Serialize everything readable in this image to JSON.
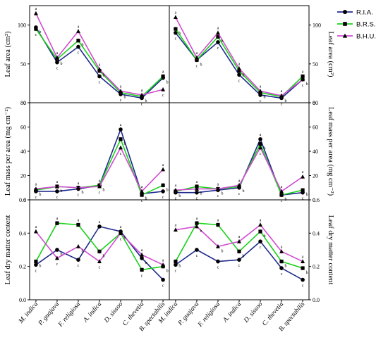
{
  "chart_data": {
    "type": "line",
    "categories": [
      "M. indica",
      "P. guajava",
      "F. religiosa",
      "A. indica",
      "D. sissoo",
      "C. thevetia",
      "B. spectabilis"
    ],
    "legend": [
      {
        "name": "R.I.A.",
        "color": "#1f2a8c",
        "marker": "circle"
      },
      {
        "name": "B.R.S.",
        "color": "#19d219",
        "marker": "square"
      },
      {
        "name": "B.H.U.",
        "color": "#d24bd2",
        "marker": "triangle"
      }
    ],
    "panels": [
      {
        "ylabel": "Leaf area (cm²)",
        "ylabel_side": "left",
        "ylim": [
          0,
          125
        ],
        "yticks": [
          "0",
          "50",
          "100"
        ],
        "tick_values": [
          0,
          50,
          100
        ],
        "series": [
          {
            "name": "R.I.A.",
            "values": [
              97,
              52,
              72,
              34,
              11,
              6,
              32
            ]
          },
          {
            "name": "B.R.S.",
            "values": [
              95,
              56,
              80,
              41,
              13,
              8,
              34
            ]
          },
          {
            "name": "B.H.U.",
            "values": [
              115,
              58,
              92,
              43,
              15,
              10,
              17
            ]
          }
        ]
      },
      {
        "ylabel": "Leaf area (cm²)",
        "ylabel_side": "right",
        "ylim": [
          0,
          125
        ],
        "yticks": [
          "0",
          "50",
          "100"
        ],
        "tick_values": [
          0,
          50,
          100
        ],
        "series": [
          {
            "name": "R.I.A.",
            "values": [
              90,
              55,
              78,
              36,
              10,
              6,
              30
            ]
          },
          {
            "name": "B.R.S.",
            "values": [
              95,
              55,
              85,
              41,
              13,
              8,
              34
            ]
          },
          {
            "name": "B.H.U.",
            "values": [
              110,
              58,
              90,
              44,
              15,
              9,
              30
            ]
          }
        ]
      },
      {
        "ylabel": "Leaf mass per area (mg cm⁻²)",
        "ylabel_side": "left",
        "ylim": [
          0,
          80
        ],
        "yticks": [
          "0",
          "20",
          "40",
          "60",
          "80"
        ],
        "tick_values": [
          0,
          20,
          40,
          60,
          80
        ],
        "series": [
          {
            "name": "R.I.A.",
            "values": [
              7,
              7,
              9,
              12,
              58,
              5,
              7
            ]
          },
          {
            "name": "B.R.S.",
            "values": [
              8,
              11,
              10,
              12,
              50,
              4,
              12
            ]
          },
          {
            "name": "B.H.U.",
            "values": [
              9,
              11,
              10,
              11,
              43,
              7,
              25
            ]
          }
        ]
      },
      {
        "ylabel": "Leaf mass per area (mg cm⁻²)",
        "ylabel_side": "right",
        "ylim": [
          0,
          80
        ],
        "yticks": [
          "0",
          "20",
          "40",
          "60",
          "80"
        ],
        "tick_values": [
          0,
          20,
          40,
          60,
          80
        ],
        "series": [
          {
            "name": "R.I.A.",
            "values": [
              6,
              6,
              8,
              10,
              50,
              4,
              6
            ]
          },
          {
            "name": "B.R.S.",
            "values": [
              7,
              11,
              9,
              11,
              46,
              4,
              8
            ]
          },
          {
            "name": "B.H.U.",
            "values": [
              8,
              9,
              9,
              12,
              43,
              7,
              19
            ]
          }
        ]
      },
      {
        "ylabel": "Leaf dry matter content",
        "ylabel_side": "left",
        "ylim": [
          0,
          0.6
        ],
        "yticks": [
          "0.0",
          "0.2",
          "0.4",
          "0.6"
        ],
        "tick_values": [
          0,
          0.2,
          0.4,
          0.6
        ],
        "series": [
          {
            "name": "R.I.A.",
            "values": [
              0.21,
              0.3,
              0.24,
              0.44,
              0.41,
              0.25,
              0.12
            ]
          },
          {
            "name": "B.R.S.",
            "values": [
              0.23,
              0.46,
              0.45,
              0.29,
              0.4,
              0.18,
              0.2
            ]
          },
          {
            "name": "B.H.U.",
            "values": [
              0.41,
              0.25,
              0.32,
              0.23,
              0.4,
              0.27,
              0.21
            ]
          }
        ]
      },
      {
        "ylabel": "Leaf dry matter content",
        "ylabel_side": "right",
        "ylim": [
          0,
          0.6
        ],
        "yticks": [
          "0.0",
          "0.2",
          "0.4",
          "0.6"
        ],
        "tick_values": [
          0,
          0.2,
          0.4,
          0.6
        ],
        "series": [
          {
            "name": "R.I.A.",
            "values": [
              0.21,
              0.3,
              0.23,
              0.24,
              0.35,
              0.19,
              0.12
            ]
          },
          {
            "name": "B.R.S.",
            "values": [
              0.23,
              0.46,
              0.45,
              0.29,
              0.41,
              0.23,
              0.19
            ]
          },
          {
            "name": "B.H.U.",
            "values": [
              0.42,
              0.44,
              0.32,
              0.35,
              0.45,
              0.29,
              0.23
            ]
          }
        ]
      }
    ]
  }
}
